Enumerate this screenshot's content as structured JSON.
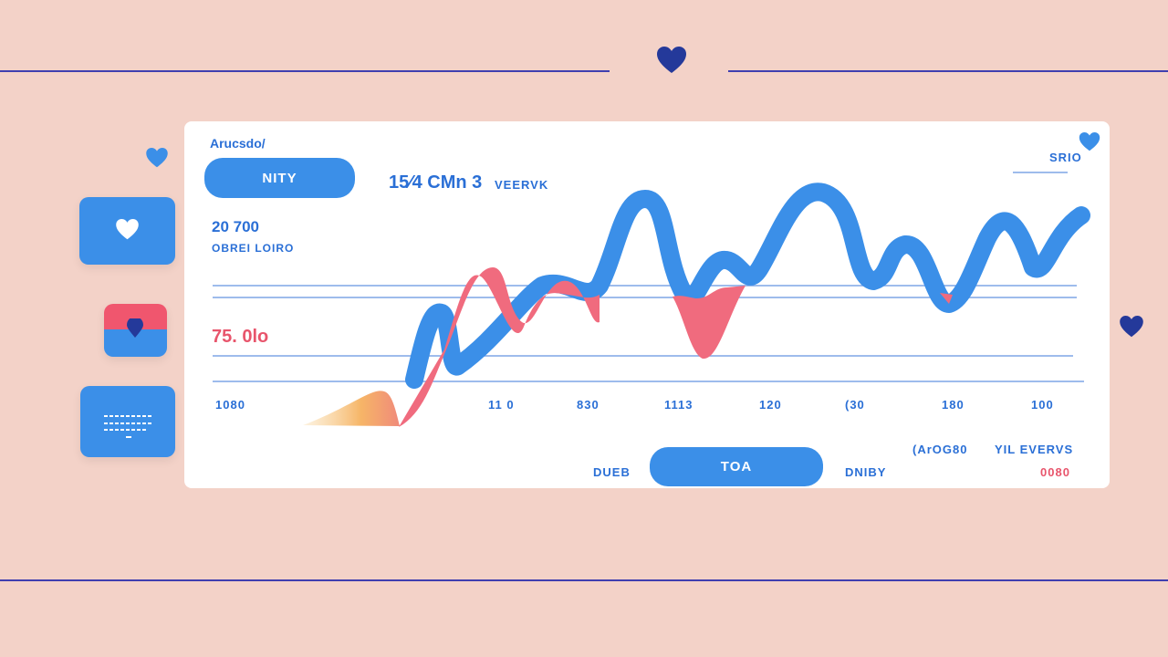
{
  "header": {
    "left_line": "",
    "right_line": ""
  },
  "sidebar": {
    "tiles": [
      {
        "icon": "heart-icon"
      },
      {
        "icon": "pin-icon"
      },
      {
        "icon": "menu-lines-icon"
      }
    ]
  },
  "card": {
    "title": "Arucsdo/",
    "filter_button": "NITY",
    "headline": "15⁄4 CMn 3",
    "headline_sub": "VEERVK",
    "metric_top": "20 700",
    "metric_top_label": "OBREI LOIRO",
    "metric_red": "75. 0lo",
    "corner_label": "SRIO",
    "x_ticks": [
      "1080",
      "11 0",
      "830",
      "1113",
      "120",
      "(30",
      "180",
      "100"
    ],
    "footer_left": "DUEB",
    "footer_button": "TOA",
    "footer_mid": "DNIBY",
    "footer_right_top_a": "(ArOG80",
    "footer_right_top_b": "YIL EVERVS",
    "footer_right_red": "0080"
  },
  "colors": {
    "background": "#f3d2c8",
    "accent_blue": "#3b8fe8",
    "text_blue": "#2a6fd6",
    "accent_red": "#e8556c",
    "accent_orange": "#f6b567",
    "line_navy": "#3f3fb0",
    "heart_navy": "#24399a"
  }
}
